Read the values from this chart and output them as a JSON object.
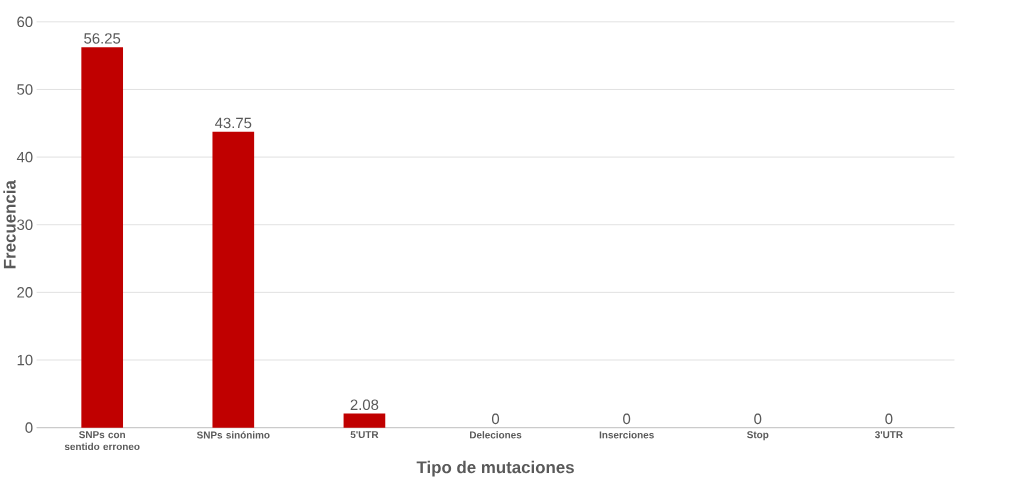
{
  "chart_data": {
    "type": "bar",
    "xlabel": "Tipo  de mutaciones",
    "ylabel": "Frecuencia",
    "categories": [
      "SNPs con sentido erroneo",
      "SNPs sinónimo",
      "5'UTR",
      "Deleciones",
      "Inserciones",
      "Stop",
      "3'UTR"
    ],
    "values": [
      56.25,
      43.75,
      2.08,
      0,
      0,
      0,
      0
    ],
    "color": "#c00000",
    "ylim": [
      0,
      60
    ],
    "yticks": [
      0,
      10,
      20,
      30,
      40,
      50,
      60
    ],
    "grid": "y",
    "data_labels": true
  }
}
